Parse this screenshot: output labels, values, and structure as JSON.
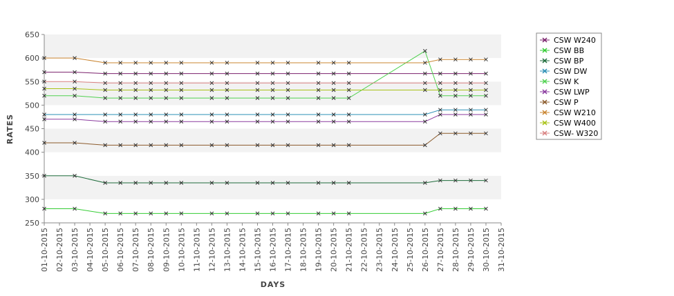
{
  "chart_data": {
    "type": "line",
    "xlabel": "DAYS",
    "ylabel": "RATES",
    "ylim": [
      250,
      650
    ],
    "yticks": [
      250,
      300,
      350,
      400,
      450,
      500,
      550,
      600,
      650
    ],
    "grid": "alternating horizontal bands",
    "legend_position": "right",
    "x_tick_labels": [
      "01-10-2015",
      "02-10-2015",
      "03-10-2015",
      "04-10-2015",
      "05-10-2015",
      "06-10-2015",
      "07-10-2015",
      "08-10-2015",
      "09-10-2015",
      "10-10-2015",
      "11-10-2015",
      "12-10-2015",
      "13-10-2015",
      "14-10-2015",
      "15-10-2015",
      "16-10-2015",
      "17-10-2015",
      "18-10-2015",
      "19-10-2015",
      "20-10-2015",
      "21-10-2015",
      "22-10-2015",
      "23-10-2015",
      "24-10-2015",
      "25-10-2015",
      "26-10-2015",
      "27-10-2015",
      "28-10-2015",
      "29-10-2015",
      "30-10-2015",
      "31-10-2015"
    ],
    "x_dates": [
      "01-10-2015",
      "03-10-2015",
      "05-10-2015",
      "06-10-2015",
      "07-10-2015",
      "08-10-2015",
      "09-10-2015",
      "10-10-2015",
      "12-10-2015",
      "13-10-2015",
      "15-10-2015",
      "16-10-2015",
      "17-10-2015",
      "19-10-2015",
      "20-10-2015",
      "21-10-2015",
      "26-10-2015",
      "27-10-2015",
      "28-10-2015",
      "29-10-2015",
      "30-10-2015"
    ],
    "series": [
      {
        "name": "CSW  W240",
        "color": "#7a1f6b",
        "values": [
          570,
          570,
          567,
          567,
          567,
          567,
          567,
          567,
          567,
          567,
          567,
          567,
          567,
          567,
          567,
          567,
          567,
          567,
          567,
          567,
          567
        ]
      },
      {
        "name": "CSW BB",
        "color": "#33cc33",
        "values": [
          280,
          280,
          270,
          270,
          270,
          270,
          270,
          270,
          270,
          270,
          270,
          270,
          270,
          270,
          270,
          270,
          270,
          280,
          280,
          280,
          280
        ]
      },
      {
        "name": "CSW BP",
        "color": "#1d6b3a",
        "values": [
          350,
          350,
          335,
          335,
          335,
          335,
          335,
          335,
          335,
          335,
          335,
          335,
          335,
          335,
          335,
          335,
          335,
          340,
          340,
          340,
          340
        ]
      },
      {
        "name": "CSW DW",
        "color": "#2a8fb5",
        "values": [
          480,
          480,
          480,
          480,
          480,
          480,
          480,
          480,
          480,
          480,
          480,
          480,
          480,
          480,
          480,
          480,
          480,
          490,
          490,
          490,
          490
        ]
      },
      {
        "name": "CSW K",
        "color": "#4fd14f",
        "values": [
          520,
          520,
          515,
          515,
          515,
          515,
          515,
          515,
          515,
          515,
          515,
          515,
          515,
          515,
          515,
          515,
          615,
          520,
          520,
          520,
          520
        ]
      },
      {
        "name": "CSW LWP",
        "color": "#8a3a9e",
        "values": [
          470,
          470,
          465,
          465,
          465,
          465,
          465,
          465,
          465,
          465,
          465,
          465,
          465,
          465,
          465,
          465,
          465,
          480,
          480,
          480,
          480
        ]
      },
      {
        "name": "CSW P",
        "color": "#8b5a2b",
        "values": [
          420,
          420,
          415,
          415,
          415,
          415,
          415,
          415,
          415,
          415,
          415,
          415,
          415,
          415,
          415,
          415,
          415,
          440,
          440,
          440,
          440
        ]
      },
      {
        "name": "CSW W210",
        "color": "#c9842f",
        "values": [
          600,
          600,
          590,
          590,
          590,
          590,
          590,
          590,
          590,
          590,
          590,
          590,
          590,
          590,
          590,
          590,
          590,
          597,
          597,
          597,
          597
        ]
      },
      {
        "name": "CSW W400",
        "color": "#a8c214",
        "values": [
          535,
          535,
          532,
          532,
          532,
          532,
          532,
          532,
          532,
          532,
          532,
          532,
          532,
          532,
          532,
          532,
          532,
          532,
          532,
          532,
          532
        ]
      },
      {
        "name": "CSW- W320",
        "color": "#d98080",
        "values": [
          550,
          550,
          547,
          547,
          547,
          547,
          547,
          547,
          547,
          547,
          547,
          547,
          547,
          547,
          547,
          547,
          547,
          547,
          547,
          547,
          547
        ]
      }
    ]
  }
}
